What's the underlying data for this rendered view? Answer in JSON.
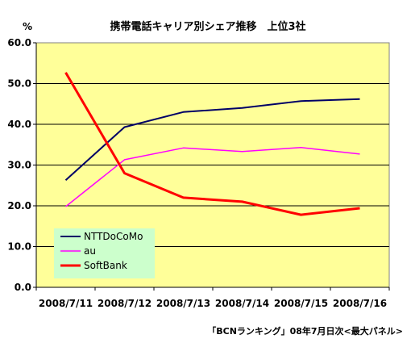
{
  "chart_data": {
    "type": "line",
    "title": "携帯電話キャリア別シェア推移　上位3社",
    "ylabel": "%",
    "ylim": [
      0,
      60
    ],
    "yticks": [
      "0.0",
      "10.0",
      "20.0",
      "30.0",
      "40.0",
      "50.0",
      "60.0"
    ],
    "categories": [
      "2008/7/11",
      "2008/7/12",
      "2008/7/13",
      "2008/7/14",
      "2008/7/15",
      "2008/7/16"
    ],
    "x": [
      "2008/7/11",
      "2008/7/11.5",
      "2008/7/12.5",
      "2008/7/13.5",
      "2008/7/14.5",
      "2008/7/15.5"
    ],
    "series": [
      {
        "name": "NTTDoCoMo",
        "color": "#000066",
        "values": [
          26.3,
          39.3,
          43.0,
          44.0,
          45.7,
          46.2
        ]
      },
      {
        "name": "au",
        "color": "#ff00ff",
        "values": [
          19.8,
          31.3,
          34.2,
          33.3,
          34.3,
          32.7
        ]
      },
      {
        "name": "SoftBank",
        "color": "#ff0000",
        "values": [
          52.7,
          28.0,
          22.0,
          21.0,
          17.8,
          19.4
        ]
      }
    ],
    "legend": "bottom-left",
    "grid": true,
    "plot_background": "#ffff99",
    "legend_background": "#ccffcc",
    "source": "「BCNランキング」08年7月日次<最大パネル>"
  }
}
